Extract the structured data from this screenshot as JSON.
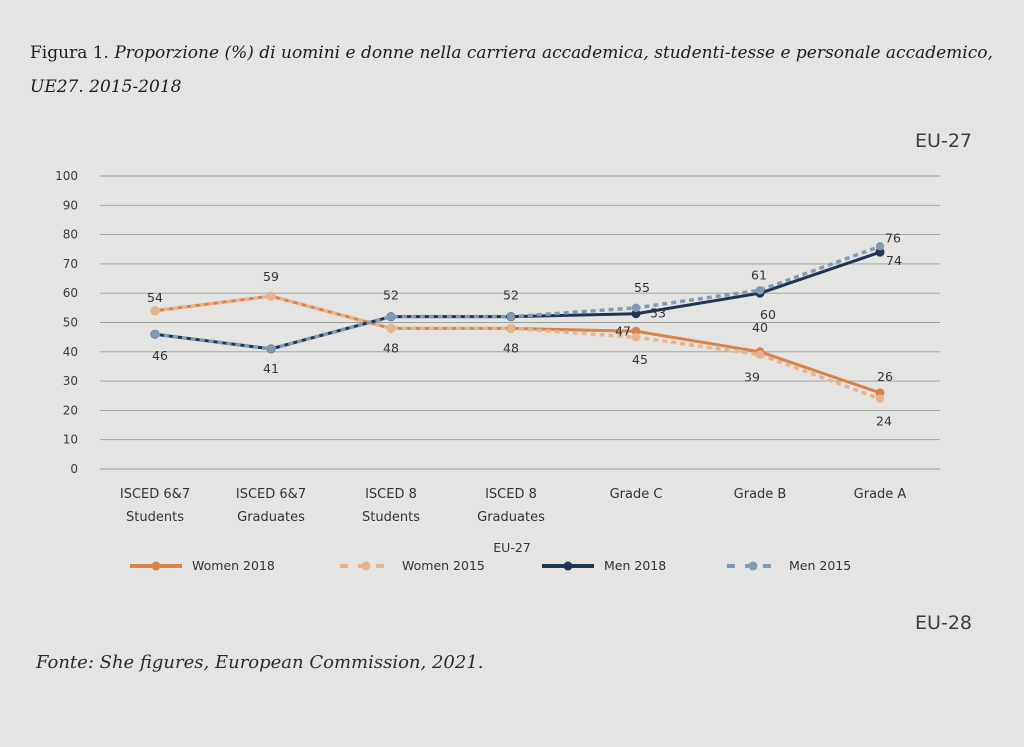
{
  "figure": {
    "label": "Figura 1.",
    "title": "Proporzione (%) di uomini e donne nella carriera accademica, studenti-tesse e personale accademico, UE27. 2015-2018",
    "region_top": "EU-27",
    "region_bottom": "EU-28",
    "source": "Fonte: She figures, European Commission, 2021."
  },
  "chart_data": {
    "type": "line",
    "title": "EU-27",
    "xlabel": "",
    "ylabel": "",
    "ylim": [
      0,
      100
    ],
    "yticks": [
      "100",
      "90",
      "80",
      "70",
      "60",
      "50",
      "40",
      "30",
      "20",
      "10",
      "0"
    ],
    "grid": true,
    "legend_position": "bottom",
    "categories": [
      [
        "ISCED 6&7",
        "Students"
      ],
      [
        "ISCED 6&7",
        "Graduates"
      ],
      [
        "ISCED 8",
        "Students"
      ],
      [
        "ISCED 8",
        "Graduates"
      ],
      [
        "Grade C",
        ""
      ],
      [
        "Grade B",
        ""
      ],
      [
        "Grade A",
        ""
      ]
    ],
    "series": [
      {
        "name": "Women 2018",
        "values": [
          54,
          59,
          48,
          48,
          47,
          40,
          26
        ],
        "color": "#d9834a",
        "dashed": false
      },
      {
        "name": "Women 2015",
        "values": [
          54,
          59,
          48,
          48,
          45,
          39,
          24
        ],
        "color": "#e8b48e",
        "dashed": true
      },
      {
        "name": "Men 2018",
        "values": [
          46,
          41,
          52,
          52,
          53,
          60,
          74
        ],
        "color": "#1f3550",
        "dashed": false
      },
      {
        "name": "Men 2015",
        "values": [
          46,
          41,
          52,
          52,
          55,
          61,
          76
        ],
        "color": "#7f9bb6",
        "dashed": true
      }
    ],
    "data_labels": [
      {
        "text": "54",
        "cat": 0,
        "value": 54
      },
      {
        "text": "46",
        "cat": 0,
        "value": 46
      },
      {
        "text": "59",
        "cat": 1,
        "value": 59
      },
      {
        "text": "41",
        "cat": 1,
        "value": 41
      },
      {
        "text": "52",
        "cat": 2,
        "value": 52
      },
      {
        "text": "48",
        "cat": 2,
        "value": 48
      },
      {
        "text": "52",
        "cat": 3,
        "value": 52
      },
      {
        "text": "48",
        "cat": 3,
        "value": 48
      },
      {
        "text": "55",
        "cat": 4,
        "value": 55
      },
      {
        "text": "47",
        "cat": 4,
        "value": 47
      },
      {
        "text": "53",
        "cat": 4,
        "value": 53
      },
      {
        "text": "45",
        "cat": 4,
        "value": 45
      },
      {
        "text": "61",
        "cat": 5,
        "value": 61
      },
      {
        "text": "60",
        "cat": 5,
        "value": 60
      },
      {
        "text": "40",
        "cat": 5,
        "value": 40
      },
      {
        "text": "39",
        "cat": 5,
        "value": 39
      },
      {
        "text": "76",
        "cat": 6,
        "value": 76
      },
      {
        "text": "74",
        "cat": 6,
        "value": 74
      },
      {
        "text": "26",
        "cat": 6,
        "value": 26
      },
      {
        "text": "24",
        "cat": 6,
        "value": 24
      }
    ],
    "legend_caption": "EU-27"
  }
}
